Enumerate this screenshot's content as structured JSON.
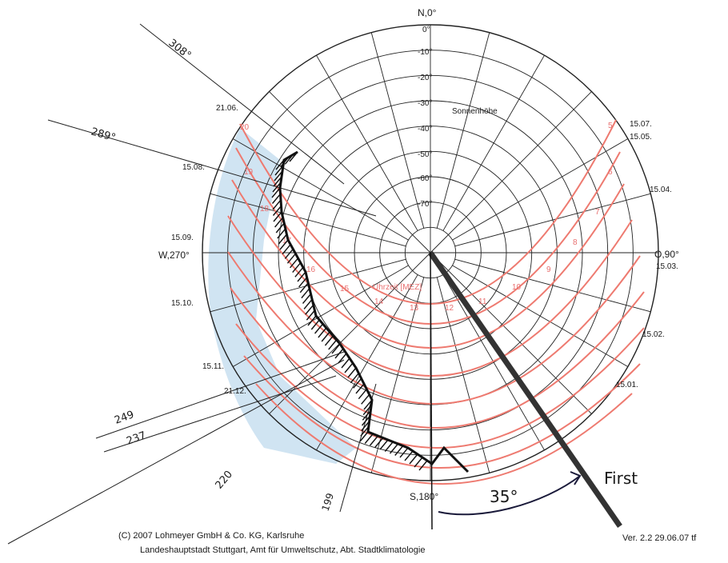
{
  "title_top": "N,0°",
  "altitude_title": "Sonnenhöhe",
  "altitude_labels": [
    "0°",
    "-10°",
    "-20°",
    "-30°",
    "-40°",
    "-50°",
    "-60°",
    "-70°"
  ],
  "direction_labels": {
    "west": "W,270°",
    "east": "O,90°",
    "south": "S,180°"
  },
  "left_dates": [
    "21.06.",
    "15.08.",
    "15.09.",
    "15.10.",
    "15.11.",
    "21.12."
  ],
  "right_dates": [
    "15.07.",
    "15.05.",
    "15.04.",
    "15.03.",
    "15.02.",
    "15.01."
  ],
  "time_label": "Uhrzeit [MEZ]",
  "hour_labels": [
    "5",
    "6",
    "7",
    "8",
    "9",
    "10",
    "11",
    "12",
    "13",
    "14",
    "15",
    "16",
    "17",
    "18",
    "19",
    "20"
  ],
  "annotations": {
    "angle_308": "308°",
    "angle_289": "289°",
    "angle_249": "249",
    "angle_237": "237",
    "angle_220": "220",
    "angle_199": "199",
    "angle_35": "35°",
    "ridge": "First"
  },
  "footer": {
    "copyright": "(C) 2007 Lohmeyer GmbH & Co. KG, Karlsruhe",
    "version": "Ver. 2.2 29.06.07 tf",
    "authority": "Landeshauptstadt Stuttgart, Amt für Umweltschutz, Abt. Stadtklimatologie"
  },
  "colors": {
    "grid": "#222222",
    "sun_path": "#ee7a70",
    "shade": "#aacde8",
    "hatch": "#111111"
  }
}
